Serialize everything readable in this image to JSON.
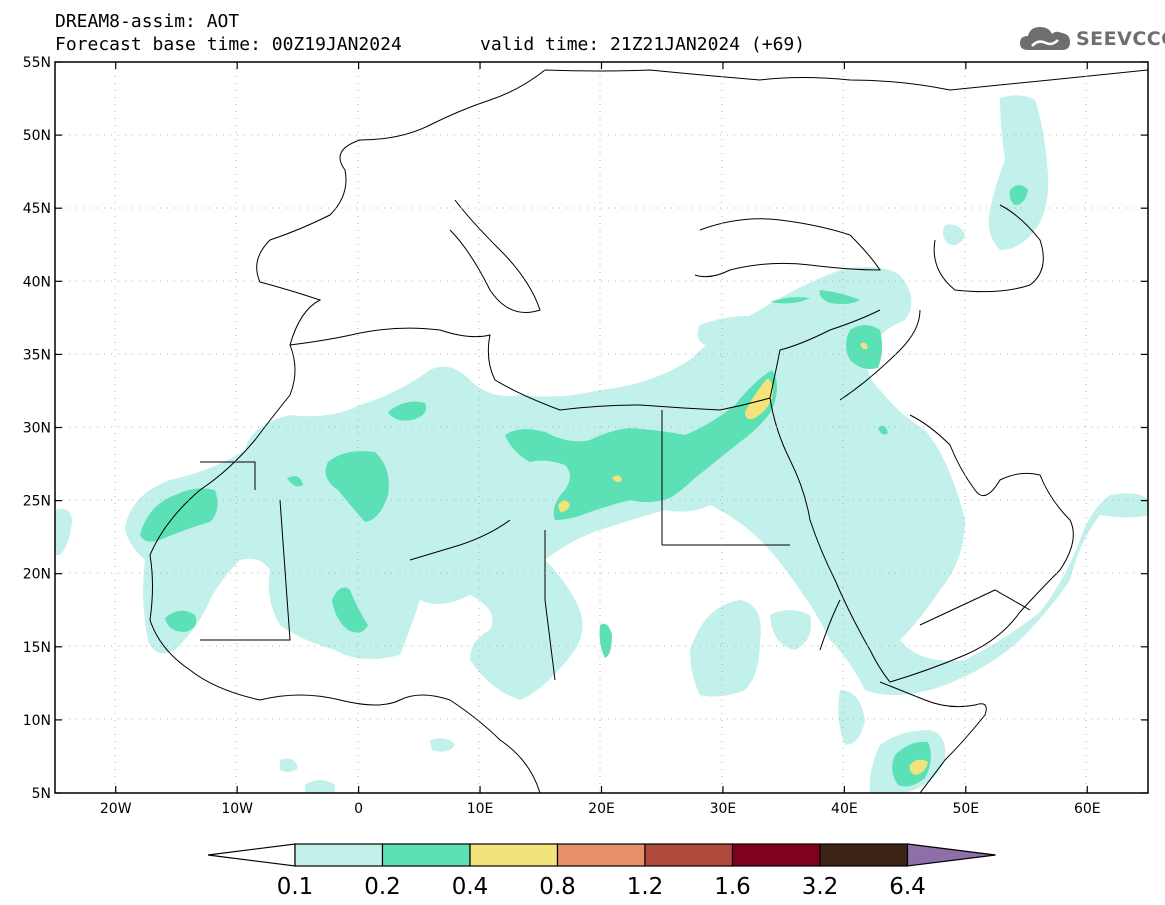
{
  "header": {
    "title_line1": "DREAM8-assim: AOT",
    "title_line2": "Forecast base time: 00Z19JAN2024",
    "valid_time": "valid time: 21Z21JAN2024 (+69)",
    "logo_text": "SEEVCCC"
  },
  "map": {
    "lon_labels": [
      "20W",
      "10W",
      "0",
      "10E",
      "20E",
      "30E",
      "40E",
      "50E",
      "60E"
    ],
    "lat_labels": [
      "55N",
      "50N",
      "45N",
      "40N",
      "35N",
      "30N",
      "25N",
      "20N",
      "15N",
      "10N",
      "5N"
    ],
    "lon_range": [
      -25,
      65
    ],
    "lat_range": [
      5,
      55
    ],
    "grid": "dotted"
  },
  "colorbar": {
    "labels": [
      "0.1",
      "0.2",
      "0.4",
      "0.8",
      "1.2",
      "1.6",
      "3.2",
      "6.4"
    ],
    "colors": [
      "#c2f0ea",
      "#5ce0b5",
      "#f2e37a",
      "#e8906a",
      "#b04a3c",
      "#800020",
      "#3b2414",
      "#8f6fa8"
    ]
  },
  "colors": {
    "level1": "#c2f0ea",
    "level2": "#5ce0b5",
    "level3": "#f2e37a",
    "coast": "#000000"
  }
}
